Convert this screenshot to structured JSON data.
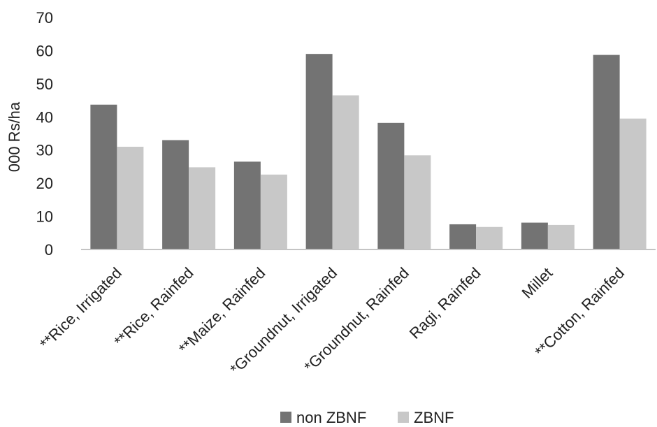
{
  "chart_data": {
    "type": "bar",
    "title": "",
    "xlabel": "",
    "ylabel": "000 Rs/ha",
    "ylim": [
      0,
      70
    ],
    "yticks": [
      0,
      10,
      20,
      30,
      40,
      50,
      60,
      70
    ],
    "grid": false,
    "legend_position": "bottom",
    "categories": [
      "**Rice,  Irrigated",
      "**Rice, Rainfed",
      "**Maize, Rainfed",
      "*Groundnut, Irrigated",
      "*Groundnut, Rainfed",
      "Ragi, Rainfed",
      "Millet",
      "**Cotton, Rainfed"
    ],
    "series": [
      {
        "name": "non ZBNF",
        "color": "#737373",
        "values": [
          43.7,
          33.0,
          26.5,
          59.0,
          38.2,
          7.6,
          8.1,
          58.7
        ]
      },
      {
        "name": "ZBNF",
        "color": "#c8c8c8",
        "values": [
          31.0,
          24.8,
          22.6,
          46.5,
          28.4,
          6.8,
          7.4,
          39.5
        ]
      }
    ]
  }
}
